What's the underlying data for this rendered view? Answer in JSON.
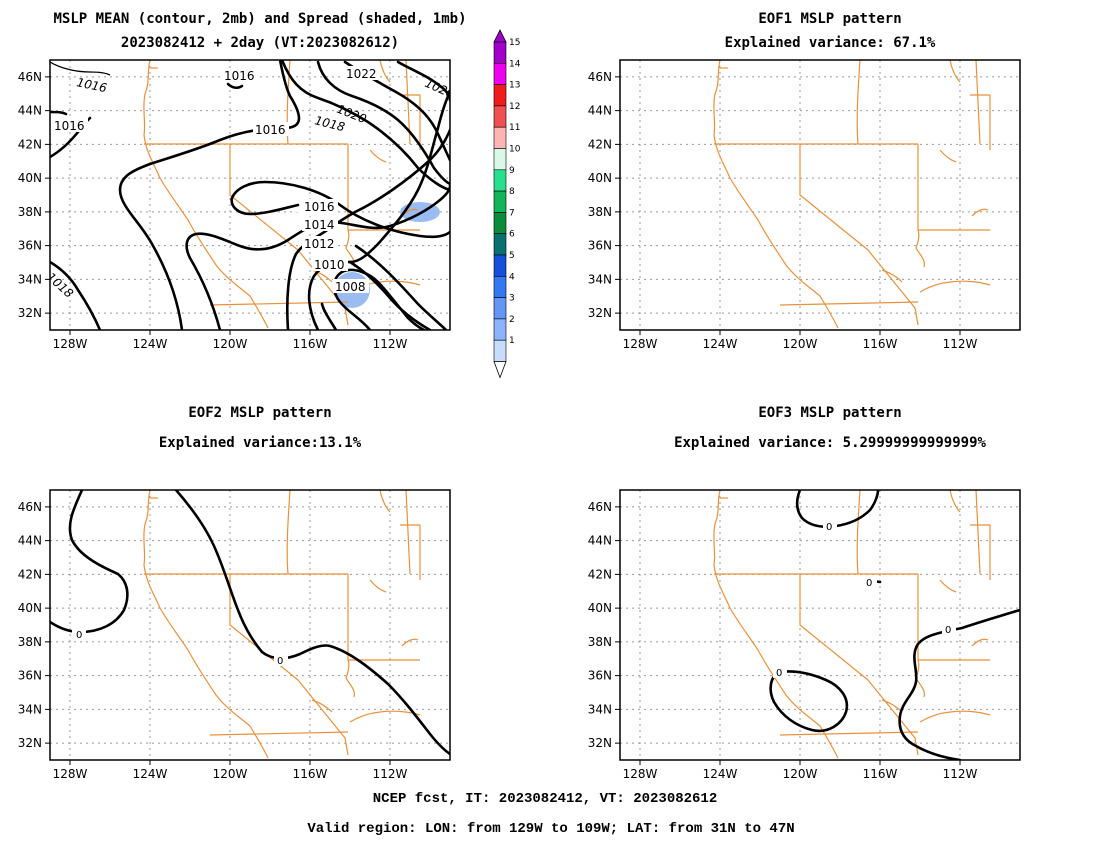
{
  "panels": [
    {
      "id": "mean",
      "title_lines": [
        "MSLP MEAN (contour, 2mb) and Spread (shaded, 1mb)",
        "2023082412 + 2day (VT:2023082612)"
      ],
      "contour_labels": [
        "1016",
        "1016",
        "1022",
        "1016",
        "1016",
        "1016",
        "1020",
        "1018",
        "1016",
        "1014",
        "1012",
        "1010",
        "1008",
        "1018",
        "1020"
      ]
    },
    {
      "id": "eof1",
      "title_lines": [
        "EOF1 MSLP pattern",
        "Explained variance: 67.1%"
      ],
      "explained_variance_percent": 67.1,
      "contour_labels": []
    },
    {
      "id": "eof2",
      "title_lines": [
        "EOF2 MSLP pattern",
        "Explained variance:13.1%"
      ],
      "explained_variance_percent": 13.1,
      "contour_labels": [
        "0",
        "0"
      ]
    },
    {
      "id": "eof3",
      "title_lines": [
        "EOF3 MSLP pattern",
        "Explained variance: 5.29999999999999%"
      ],
      "explained_variance_percent": 5.29999999999999,
      "contour_labels": [
        "0",
        "0",
        "0",
        "0"
      ]
    }
  ],
  "axes": {
    "lon_ticks": [
      "128W",
      "124W",
      "120W",
      "116W",
      "112W"
    ],
    "lat_ticks": [
      "46N",
      "44N",
      "42N",
      "40N",
      "38N",
      "36N",
      "34N",
      "32N"
    ],
    "lon_range": [
      -129,
      -109
    ],
    "lat_range": [
      31,
      47
    ],
    "grid": "dotted"
  },
  "colorbar": {
    "levels": [
      "15",
      "14",
      "13",
      "12",
      "11",
      "10",
      "9",
      "8",
      "7",
      "6",
      "5",
      "4",
      "3",
      "2",
      "1"
    ],
    "colors": [
      "#a000c8",
      "#f000f0",
      "#f01c1c",
      "#f05050",
      "#ffb4b4",
      "#d8f8e8",
      "#28e08c",
      "#14b45a",
      "#0a8c3c",
      "#0a7070",
      "#1450dc",
      "#3278f0",
      "#6496f5",
      "#8cb4fa",
      "#c8dcff"
    ]
  },
  "spread_color": "#9bbcf2",
  "geo_color": "#e8913a",
  "footer": {
    "line1": "NCEP fcst, IT: 2023082412, VT: 2023082612",
    "line2": "Valid region: LON: from 129W to 109W; LAT: from 31N to 47N"
  }
}
